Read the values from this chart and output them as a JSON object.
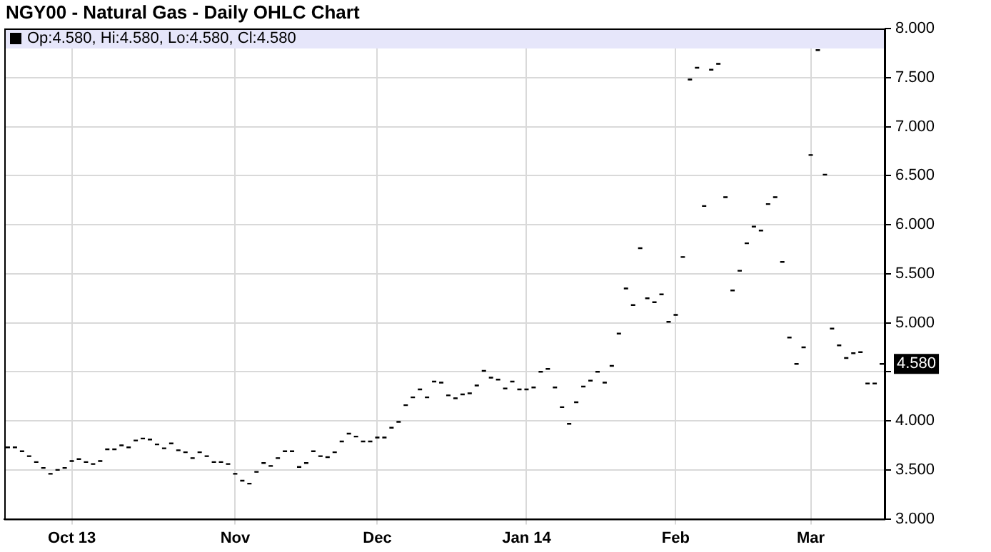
{
  "chart_data": {
    "type": "candlestick",
    "title": "NGY00 - Natural Gas - Daily OHLC Chart",
    "color": "#000000",
    "annotations": [
      "Op:4.580, Hi:4.580, Lo:4.580, Cl:4.580",
      "4.580"
    ],
    "categories": [
      null,
      null,
      null,
      null,
      null,
      null,
      null,
      null,
      null,
      "Oct 13",
      null,
      null,
      null,
      null,
      null,
      null,
      null,
      null,
      null,
      null,
      null,
      null,
      null,
      null,
      null,
      null,
      null,
      null,
      null,
      null,
      null,
      null,
      "Nov",
      null,
      null,
      null,
      null,
      null,
      null,
      null,
      null,
      null,
      null,
      null,
      null,
      null,
      null,
      null,
      null,
      null,
      null,
      null,
      "Dec",
      null,
      null,
      null,
      null,
      null,
      null,
      null,
      null,
      null,
      null,
      null,
      null,
      null,
      null,
      null,
      null,
      null,
      null,
      null,
      null,
      "Jan 14",
      null,
      null,
      null,
      null,
      null,
      null,
      null,
      null,
      null,
      null,
      null,
      null,
      null,
      null,
      null,
      null,
      null,
      null,
      null,
      null,
      "Feb",
      null,
      null,
      null,
      null,
      null,
      null,
      null,
      null,
      null,
      null,
      null,
      null,
      null,
      null,
      null,
      null,
      null,
      null,
      "Mar",
      null,
      null,
      null,
      null,
      null,
      null,
      null,
      null,
      null,
      null
    ],
    "ohlc": [
      [
        3.73,
        3.73,
        3.73,
        3.73
      ],
      [
        3.73,
        3.73,
        3.73,
        3.73
      ],
      [
        3.69,
        3.69,
        3.69,
        3.69
      ],
      [
        3.64,
        3.64,
        3.64,
        3.64
      ],
      [
        3.58,
        3.58,
        3.58,
        3.58
      ],
      [
        3.52,
        3.52,
        3.52,
        3.52
      ],
      [
        3.46,
        3.46,
        3.46,
        3.46
      ],
      [
        3.5,
        3.5,
        3.5,
        3.5
      ],
      [
        3.52,
        3.52,
        3.52,
        3.52
      ],
      [
        3.59,
        3.59,
        3.59,
        3.59
      ],
      [
        3.61,
        3.61,
        3.61,
        3.61
      ],
      [
        3.58,
        3.58,
        3.58,
        3.58
      ],
      [
        3.56,
        3.56,
        3.56,
        3.56
      ],
      [
        3.59,
        3.59,
        3.59,
        3.59
      ],
      [
        3.71,
        3.71,
        3.71,
        3.71
      ],
      [
        3.71,
        3.71,
        3.71,
        3.71
      ],
      [
        3.75,
        3.75,
        3.75,
        3.75
      ],
      [
        3.73,
        3.73,
        3.73,
        3.73
      ],
      [
        3.8,
        3.8,
        3.8,
        3.8
      ],
      [
        3.82,
        3.82,
        3.82,
        3.82
      ],
      [
        3.81,
        3.81,
        3.81,
        3.81
      ],
      [
        3.76,
        3.76,
        3.76,
        3.76
      ],
      [
        3.72,
        3.72,
        3.72,
        3.72
      ],
      [
        3.77,
        3.77,
        3.77,
        3.77
      ],
      [
        3.7,
        3.7,
        3.7,
        3.7
      ],
      [
        3.68,
        3.68,
        3.68,
        3.68
      ],
      [
        3.62,
        3.62,
        3.62,
        3.62
      ],
      [
        3.68,
        3.68,
        3.68,
        3.68
      ],
      [
        3.64,
        3.64,
        3.64,
        3.64
      ],
      [
        3.58,
        3.58,
        3.58,
        3.58
      ],
      [
        3.58,
        3.58,
        3.58,
        3.58
      ],
      [
        3.56,
        3.56,
        3.56,
        3.56
      ],
      [
        3.46,
        3.46,
        3.46,
        3.46
      ],
      [
        3.39,
        3.39,
        3.39,
        3.39
      ],
      [
        3.36,
        3.36,
        3.36,
        3.36
      ],
      [
        3.48,
        3.48,
        3.48,
        3.48
      ],
      [
        3.57,
        3.57,
        3.57,
        3.57
      ],
      [
        3.54,
        3.54,
        3.54,
        3.54
      ],
      [
        3.62,
        3.62,
        3.62,
        3.62
      ],
      [
        3.69,
        3.69,
        3.69,
        3.69
      ],
      [
        3.69,
        3.69,
        3.69,
        3.69
      ],
      [
        3.53,
        3.53,
        3.53,
        3.53
      ],
      [
        3.57,
        3.57,
        3.57,
        3.57
      ],
      [
        3.69,
        3.69,
        3.69,
        3.69
      ],
      [
        3.64,
        3.64,
        3.64,
        3.64
      ],
      [
        3.63,
        3.63,
        3.63,
        3.63
      ],
      [
        3.68,
        3.68,
        3.68,
        3.68
      ],
      [
        3.79,
        3.79,
        3.79,
        3.79
      ],
      [
        3.87,
        3.87,
        3.87,
        3.87
      ],
      [
        3.84,
        3.84,
        3.84,
        3.84
      ],
      [
        3.79,
        3.79,
        3.79,
        3.79
      ],
      [
        3.79,
        3.79,
        3.79,
        3.79
      ],
      [
        3.83,
        3.83,
        3.83,
        3.83
      ],
      [
        3.83,
        3.83,
        3.83,
        3.83
      ],
      [
        3.93,
        3.93,
        3.93,
        3.93
      ],
      [
        3.99,
        3.99,
        3.99,
        3.99
      ],
      [
        4.16,
        4.16,
        4.16,
        4.16
      ],
      [
        4.24,
        4.24,
        4.24,
        4.24
      ],
      [
        4.32,
        4.32,
        4.32,
        4.32
      ],
      [
        4.24,
        4.24,
        4.24,
        4.24
      ],
      [
        4.4,
        4.4,
        4.4,
        4.4
      ],
      [
        4.39,
        4.39,
        4.39,
        4.39
      ],
      [
        4.26,
        4.26,
        4.26,
        4.26
      ],
      [
        4.23,
        4.23,
        4.23,
        4.23
      ],
      [
        4.27,
        4.27,
        4.27,
        4.27
      ],
      [
        4.28,
        4.28,
        4.28,
        4.28
      ],
      [
        4.36,
        4.36,
        4.36,
        4.36
      ],
      [
        4.51,
        4.51,
        4.51,
        4.51
      ],
      [
        4.44,
        4.44,
        4.44,
        4.44
      ],
      [
        4.42,
        4.42,
        4.42,
        4.42
      ],
      [
        4.33,
        4.33,
        4.33,
        4.33
      ],
      [
        4.4,
        4.4,
        4.4,
        4.4
      ],
      [
        4.32,
        4.32,
        4.32,
        4.32
      ],
      [
        4.32,
        4.32,
        4.32,
        4.32
      ],
      [
        4.34,
        4.34,
        4.34,
        4.34
      ],
      [
        4.5,
        4.5,
        4.5,
        4.5
      ],
      [
        4.53,
        4.53,
        4.53,
        4.53
      ],
      [
        4.34,
        4.34,
        4.34,
        4.34
      ],
      [
        4.14,
        4.14,
        4.14,
        4.14
      ],
      [
        3.97,
        3.97,
        3.97,
        3.97
      ],
      [
        4.19,
        4.19,
        4.19,
        4.19
      ],
      [
        4.35,
        4.35,
        4.35,
        4.35
      ],
      [
        4.41,
        4.41,
        4.41,
        4.41
      ],
      [
        4.5,
        4.5,
        4.5,
        4.5
      ],
      [
        4.39,
        4.39,
        4.39,
        4.39
      ],
      [
        4.56,
        4.56,
        4.56,
        4.56
      ],
      [
        4.89,
        4.89,
        4.89,
        4.89
      ],
      [
        5.35,
        5.35,
        5.35,
        5.35
      ],
      [
        5.18,
        5.18,
        5.18,
        5.18
      ],
      [
        5.76,
        5.76,
        5.76,
        5.76
      ],
      [
        5.25,
        5.25,
        5.25,
        5.25
      ],
      [
        5.21,
        5.21,
        5.21,
        5.21
      ],
      [
        5.29,
        5.29,
        5.29,
        5.29
      ],
      [
        5.01,
        5.01,
        5.01,
        5.01
      ],
      [
        5.08,
        5.08,
        5.08,
        5.08
      ],
      [
        5.67,
        5.67,
        5.67,
        5.67
      ],
      [
        7.48,
        7.48,
        7.48,
        7.48
      ],
      [
        7.6,
        7.6,
        7.6,
        7.6
      ],
      [
        6.19,
        6.19,
        6.19,
        6.19
      ],
      [
        7.58,
        7.58,
        7.58,
        7.58
      ],
      [
        7.64,
        7.64,
        7.64,
        7.64
      ],
      [
        6.28,
        6.28,
        6.28,
        6.28
      ],
      [
        5.33,
        5.33,
        5.33,
        5.33
      ],
      [
        5.53,
        5.53,
        5.53,
        5.53
      ],
      [
        5.81,
        5.81,
        5.81,
        5.81
      ],
      [
        5.98,
        5.98,
        5.98,
        5.98
      ],
      [
        5.94,
        5.94,
        5.94,
        5.94
      ],
      [
        6.21,
        6.21,
        6.21,
        6.21
      ],
      [
        6.28,
        6.28,
        6.28,
        6.28
      ],
      [
        5.62,
        5.62,
        5.62,
        5.62
      ],
      [
        4.85,
        4.85,
        4.85,
        4.85
      ],
      [
        4.58,
        4.58,
        4.58,
        4.58
      ],
      [
        4.75,
        4.75,
        4.75,
        4.75
      ],
      [
        6.71,
        6.71,
        6.71,
        6.71
      ],
      [
        7.78,
        7.78,
        7.78,
        7.78
      ],
      [
        6.51,
        6.51,
        6.51,
        6.51
      ],
      [
        4.94,
        4.94,
        4.94,
        4.94
      ],
      [
        4.77,
        4.77,
        4.77,
        4.77
      ],
      [
        4.64,
        4.64,
        4.64,
        4.64
      ],
      [
        4.69,
        4.69,
        4.69,
        4.69
      ],
      [
        4.7,
        4.7,
        4.7,
        4.7
      ],
      [
        4.38,
        4.38,
        4.38,
        4.38
      ],
      [
        4.38,
        4.38,
        4.38,
        4.38
      ],
      [
        4.58,
        4.58,
        4.58,
        4.58
      ]
    ],
    "ylim": [
      3,
      8
    ],
    "yticks": [
      {
        "value": 3,
        "label": "3.000"
      },
      {
        "value": 3.5,
        "label": "3.500"
      },
      {
        "value": 4,
        "label": "4.000"
      },
      {
        "value": 4.5,
        "label": null
      },
      {
        "value": 5,
        "label": "5.000"
      },
      {
        "value": 5.5,
        "label": "5.500"
      },
      {
        "value": 6,
        "label": "6.000"
      },
      {
        "value": 6.5,
        "label": "6.500"
      },
      {
        "value": 7,
        "label": "7.000"
      },
      {
        "value": 7.5,
        "label": "7.500"
      },
      {
        "value": 8,
        "label": "8.000"
      }
    ],
    "grid": true
  }
}
